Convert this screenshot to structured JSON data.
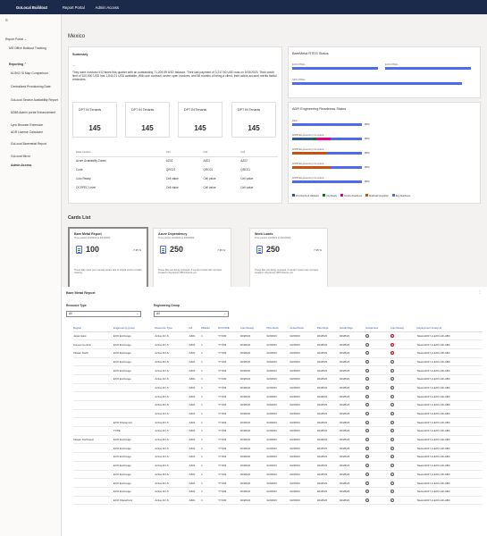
{
  "topbar": {
    "brand": "GoLocal Buildout",
    "nav": [
      "Report Portal",
      "Admin Access"
    ]
  },
  "sidebar": {
    "items": [
      {
        "label": "Report Portal",
        "chev": "⌄"
      },
      {
        "label": "MS Office Buildout Tracking"
      },
      {
        "label": "Reporting",
        "chev": "⌃"
      },
      {
        "label": "M-SKD Si Map Comparison"
      },
      {
        "label": "Centralized Provisioning Date"
      },
      {
        "label": "GoLocal Service Availability Report"
      },
      {
        "label": "M365 Admin portal Enhancement"
      },
      {
        "label": "Lync Browser Extension"
      },
      {
        "label": "ADR License Calculator"
      },
      {
        "label": "GoLocal Baremetal Report"
      },
      {
        "label": "GoLocal Micro"
      },
      {
        "label": "Admin Access"
      }
    ]
  },
  "page": {
    "title": "Mexico"
  },
  "summary": {
    "title": "Summary",
    "dash": "---",
    "text": "They were invoiced 412 times this quarter with an outstanding 71,203.59 USD balance. Their last payment of 3,217.50 USD was on 5/15/2023. Their credit limit of 100,000 USD has 1,543.21 USD available. With one contract, seven open invoices, and 58 months of being a client, their active account merits tactful reminders."
  },
  "tenants": [
    {
      "label": "DPT IN Tenants",
      "value": "145"
    },
    {
      "label": "DPT IN Tenants",
      "value": "145"
    },
    {
      "label": "DPT IN Tenants",
      "value": "145"
    },
    {
      "label": "DPT IN Tenants",
      "value": "145"
    }
  ],
  "summary_table": {
    "headers": [
      "Data Centers",
      "Cell",
      "Cell",
      "Cell"
    ],
    "rows": [
      [
        "Azure Availability Zones",
        "AZ02",
        "AZ02",
        "AZ02"
      ],
      [
        "Code",
        "QRO21",
        "QRO21",
        "QRO21"
      ],
      [
        "Colo Ready",
        "Cell value",
        "Cell value",
        "Cell value"
      ],
      [
        "OCSPEC Level",
        "Cell value",
        "Cell value",
        "Cell value"
      ]
    ]
  },
  "rtsg": {
    "title": "BareMetal RTEG Status",
    "bars": [
      {
        "label": "EXO RTEG",
        "value": 1.0
      },
      {
        "label": "EXO RTEG",
        "value": 1.0
      },
      {
        "label": "SPO RTEG",
        "value": 0.95
      }
    ]
  },
  "adr": {
    "title": "ADR Engineering Readiness Status",
    "rows": [
      {
        "label": "DEC",
        "pct": "60%",
        "segs": [
          0,
          0,
          0,
          0,
          1
        ]
      },
      {
        "label": "M365 Engineering Complete",
        "pct": "60%",
        "segs": [
          0.3,
          0.05,
          0.2,
          0.0,
          0.45
        ]
      },
      {
        "label": "M365 Engineering Complete",
        "pct": "60%",
        "segs": [
          0.0,
          0.0,
          0.0,
          0.5,
          0.5
        ]
      },
      {
        "label": "M365 Engineering Complete",
        "pct": "60%",
        "segs": [
          0.0,
          0.0,
          0.0,
          0.55,
          0.45
        ]
      },
      {
        "label": "M365 Engineering Complete",
        "pct": "60%",
        "segs": [
          0,
          0,
          0,
          0,
          1
        ]
      }
    ],
    "legend": [
      "Infra Deploy & Validation",
      "App Ready",
      "Service Readiness",
      "Workload Integration",
      "Eng Readiness"
    ],
    "colors": [
      "#2b5797",
      "#107c10",
      "#e3008c",
      "#ca5010",
      "#4f6bed"
    ]
  },
  "cards_list": {
    "title": "Cards List",
    "cards": [
      {
        "title": "Bare Metal Report",
        "period": "Time period: 2/1/2022 to 3/31/2022",
        "value": "100",
        "delta": "-7.35 %",
        "desc": "These files need your manual review due to critical errors or fields missing.",
        "selected": true
      },
      {
        "title": "Azure Dependency",
        "period": "Time period: 2/1/2022 to 3/31/2022",
        "value": "250",
        "delta": "7.35 %",
        "desc": "These files are being reviewed. A vendor invoice has not been created in Dynamics 365 Finance yet.",
        "selected": false
      },
      {
        "title": "Work Loads",
        "period": "Time period: 2/1/2022 to 3/31/2022",
        "value": "250",
        "delta": "7.35 %",
        "desc": "These files are being reviewed. A vendor invoice has not been created in Dynamics 365 Finance yet.",
        "selected": false
      }
    ]
  },
  "report": {
    "title": "Bare Metal Report",
    "filters": [
      {
        "label": "Resource Type",
        "value": "All"
      },
      {
        "label": "Engineering Group",
        "value": "All"
      }
    ],
    "headers": [
      "Region",
      "Engineering group",
      "Resource Type",
      "AZ",
      "#Racks",
      "DCCODE",
      "Colo Ready",
      "Plan Deck",
      "Actual Deck",
      "Plan Rtge",
      "Actual Rtge",
      "Actual Hec",
      "Colo Ready",
      "Deployment Group Id"
    ],
    "rows": [
      [
        "Japan East",
        "EXO Exchange",
        "Active Dir-S",
        "AZ01",
        "1",
        "TYO03",
        "02/28/23",
        "02/28/23",
        "02/28/23",
        "02/28/23",
        "02/28/23",
        "ok",
        "x",
        "Taiwan2017-A-EXO-AD-ABC"
      ],
      [
        "Korean Central",
        "EXO Exchange",
        "Active Dir-S",
        "AZ01",
        "1",
        "TYO03",
        "02/28/23",
        "02/28/23",
        "02/28/23",
        "02/28/23",
        "02/28/23",
        "ok",
        "x",
        "Taiwan2017-A-EXO-AD-ABC"
      ],
      [
        "Taiwan North",
        "EXO Exchange",
        "Active Dir-S",
        "AZ01",
        "1",
        "TYO03",
        "02/28/23",
        "02/28/23",
        "02/28/23",
        "02/28/23",
        "02/28/23",
        "ok",
        "x",
        "Taiwan2017-A-EXO-AD-ABC"
      ],
      [
        "",
        "EXO Exchange",
        "Active Dir-S",
        "AZ01",
        "1",
        "TYO03",
        "02/28/23",
        "02/28/23",
        "02/28/23",
        "02/28/23",
        "02/28/23",
        "ok",
        "ok",
        "Taiwan2017-A-EXO-AD-ABC"
      ],
      [
        "",
        "EXO Exchange",
        "Active Dir-S",
        "AZ01",
        "1",
        "TYO03",
        "02/28/23",
        "02/28/23",
        "02/28/23",
        "02/28/23",
        "02/28/23",
        "ok",
        "ok",
        "Taiwan2017-A-EXO-AD-ABC"
      ],
      [
        "",
        "EXO Exchange",
        "Active Dir-S",
        "AZ01",
        "1",
        "TYO03",
        "02/28/23",
        "02/28/23",
        "02/28/23",
        "02/28/23",
        "02/28/23",
        "ok",
        "ok",
        "Taiwan2017-A-EXO-AD-ABC"
      ],
      [
        "",
        "",
        "Active Dir-S",
        "AZ01",
        "1",
        "TYO03",
        "02/28/23",
        "02/28/23",
        "02/28/23",
        "02/28/23",
        "02/28/23",
        "ok",
        "ok",
        "Taiwan2017-A-EXO-AD-ABC"
      ],
      [
        "",
        "",
        "Active Dir-S",
        "AZ01",
        "1",
        "TYO03",
        "02/28/23",
        "02/28/23",
        "02/28/23",
        "02/28/23",
        "02/28/23",
        "ok",
        "ok",
        "Taiwan2017-A-EXO-AD-ABC"
      ],
      [
        "",
        "",
        "Active Dir-S",
        "AZ01",
        "1",
        "TYO03",
        "02/28/23",
        "02/28/23",
        "02/28/23",
        "02/28/23",
        "02/28/23",
        "ok",
        "ok",
        "Taiwan2017-A-EXO-AD-ABC"
      ],
      [
        "",
        "",
        "Active Dir-S",
        "AZ01",
        "1",
        "TYO03",
        "02/28/23",
        "02/28/23",
        "02/28/23",
        "02/28/23",
        "02/28/23",
        "ok",
        "ok",
        "Taiwan2017-A-EXO-AD-ABC"
      ],
      [
        "",
        "EXO Sharepoint",
        "Active Dir-S",
        "AZ01",
        "1",
        "TYO03",
        "02/28/23",
        "02/28/23",
        "02/28/23",
        "02/28/23",
        "02/28/23",
        "ok",
        "ok",
        "Taiwan2017-A-EXO-AD-ABC"
      ],
      [
        "",
        "TOPE",
        "Active Dir-S",
        "AZ01",
        "1",
        "TYO03",
        "02/28/23",
        "02/28/23",
        "02/28/23",
        "02/28/23",
        "02/28/23",
        "ok",
        "ok",
        "Taiwan2017-A-EXO-AD-ABC"
      ],
      [
        "Taiwan Northwest",
        "EXO Exchange",
        "Active Dir-S",
        "AZ01",
        "1",
        "TYO03",
        "02/28/23",
        "02/28/23",
        "02/28/23",
        "02/28/23",
        "02/28/23",
        "ok",
        "ok",
        "Taiwan2017-A-EXO-AD-ABC"
      ],
      [
        "",
        "EXO Exchange",
        "Active Dir-S",
        "AZ01",
        "1",
        "TYO03",
        "02/28/23",
        "02/28/23",
        "02/28/23",
        "02/28/23",
        "02/28/23",
        "ok",
        "ok",
        "Taiwan2017-A-EXO-AD-ABC"
      ],
      [
        "",
        "EXO Exchange",
        "Active Dir-S",
        "AZ01",
        "1",
        "TYO03",
        "02/28/23",
        "02/28/23",
        "02/28/23",
        "02/28/23",
        "02/28/23",
        "ok",
        "ok",
        "Taiwan2017-A-EXO-AD-ABC"
      ],
      [
        "",
        "EXO Exchange",
        "Active Dir-S",
        "AZ01",
        "1",
        "TYO03",
        "02/28/23",
        "02/28/23",
        "02/28/23",
        "02/28/23",
        "02/28/23",
        "ok",
        "ok",
        "Taiwan2017-A-EXO-AD-ABC"
      ],
      [
        "",
        "EXO Exchange",
        "Active Dir-S",
        "AZ01",
        "1",
        "TYO03",
        "02/28/23",
        "02/28/23",
        "02/28/23",
        "02/28/23",
        "02/28/23",
        "ok",
        "ok",
        "Taiwan2017-A-EXO-AD-ABC"
      ],
      [
        "",
        "EXO Exchange",
        "Active Dir-S",
        "AZ01",
        "1",
        "TYO03",
        "02/28/23",
        "02/28/23",
        "02/28/23",
        "02/28/23",
        "02/28/23",
        "ok",
        "ok",
        "Taiwan2017-A-EXO-AD-ABC"
      ],
      [
        "",
        "EXO Exchange",
        "Active Dir-S",
        "AZ01",
        "1",
        "TYO03",
        "02/28/23",
        "02/28/23",
        "02/28/23",
        "02/28/23",
        "02/28/23",
        "ok",
        "ok",
        "Taiwan2017-A-EXO-AD-ABC"
      ],
      [
        "",
        "EXO SharePoint",
        "Active Dir-S",
        "AZ01",
        "1",
        "TYO03",
        "02/28/23",
        "02/28/23",
        "02/28/23",
        "02/28/23",
        "02/28/23",
        "ok",
        "ok",
        "Taiwan2017-A-EXO-AD-ABC"
      ]
    ]
  },
  "icons": {
    "menu": "hamburger-icon",
    "more": "more-dots-icon",
    "doc": "document-icon"
  }
}
